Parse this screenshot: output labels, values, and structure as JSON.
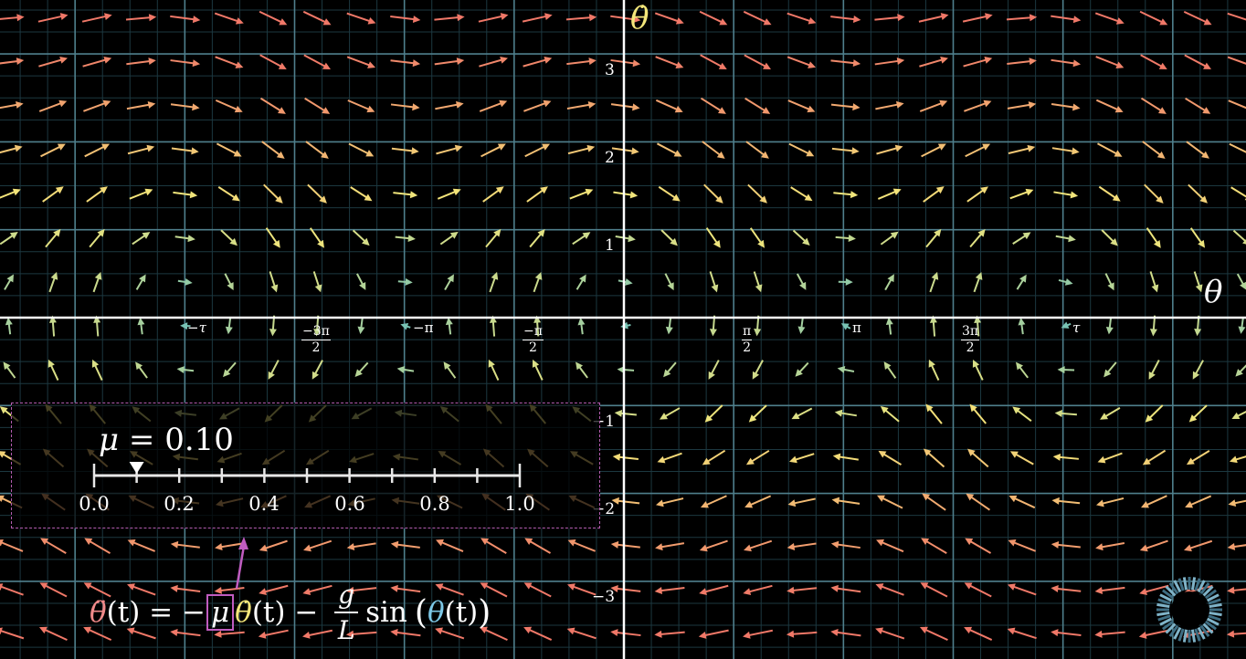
{
  "axes": {
    "vertical_axis_label": "θ̇",
    "horizontal_axis_label": "θ",
    "y_tick_labels": [
      {
        "value": 3,
        "text": "3"
      },
      {
        "value": 2,
        "text": "2"
      },
      {
        "value": 1,
        "text": "1"
      },
      {
        "value": -1,
        "text": "−1"
      },
      {
        "value": -2,
        "text": "−2"
      },
      {
        "value": -3,
        "text": "−3"
      }
    ],
    "x_tick_labels": [
      {
        "value": -6.2832,
        "text": "−τ"
      },
      {
        "value": -4.7124,
        "num": "−3π",
        "den": "2"
      },
      {
        "value": -3.1416,
        "text": "−π"
      },
      {
        "value": -1.5708,
        "num": "−π",
        "den": "2"
      },
      {
        "value": 1.5708,
        "num": "π",
        "den": "2"
      },
      {
        "value": 3.1416,
        "text": "π"
      },
      {
        "value": 4.7124,
        "num": "3π",
        "den": "2"
      },
      {
        "value": 6.2832,
        "text": "τ"
      }
    ]
  },
  "slider": {
    "label_symbol": "μ",
    "label_equals": " = ",
    "value_text": "0.10",
    "value": 0.1,
    "min": 0.0,
    "max": 1.0,
    "tick_labels": [
      "0.0",
      "0.2",
      "0.4",
      "0.6",
      "0.8",
      "1.0"
    ]
  },
  "equation": {
    "lhs_symbol": "θ̈",
    "t_paren": "(t)",
    "equals_minus": " = −",
    "mu": "μ",
    "theta_dot": "θ̇",
    "minus": " − ",
    "g": "g",
    "L": "L",
    "sin": "sin",
    "open_paren": "(",
    "theta": "θ",
    "close_paren": ")"
  },
  "colors": {
    "background": "#000000",
    "grid_major": "#4f7f8c",
    "grid_minor": "#1c3840",
    "axis": "#ffffff",
    "slider_border": "#b45cb0",
    "pointer_arrow": "#c05cc0",
    "vector_slow": "#6fc0b8",
    "vector_mid": "#f3e67a",
    "vector_fast": "#f07868"
  },
  "chart_data": {
    "type": "vector-field",
    "system": "damped pendulum",
    "mu": 0.1,
    "g_over_L": 1.0,
    "x_range": [
      -7.1,
      7.3
    ],
    "y_range": [
      -3.6,
      3.6
    ]
  },
  "icons": {
    "loading": "loading-spinner-icon"
  }
}
